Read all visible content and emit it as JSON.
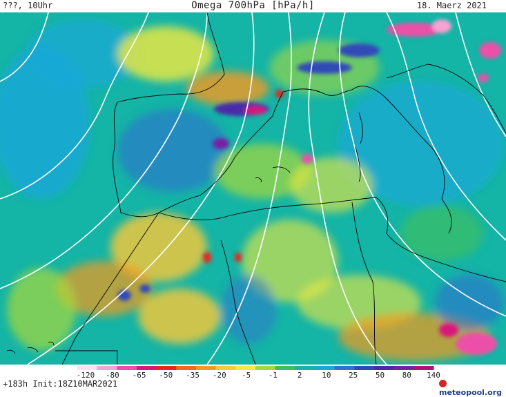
{
  "header": {
    "left": "???, 10Uhr",
    "title": "Omega 700hPa [hPa/h]",
    "date": "18. Maerz 2021"
  },
  "footer": {
    "run": "+183h  Init:18Z10MAR2021",
    "logo": "meteopool.org"
  },
  "legend": {
    "labels": [
      "-120",
      "-80",
      "-65",
      "-50",
      "-35",
      "-20",
      "-5",
      "-1",
      "2",
      "10",
      "25",
      "50",
      "80",
      "140"
    ],
    "colors": [
      "#fde0f2",
      "#f7a3d4",
      "#ec4fa8",
      "#d9197a",
      "#e8261c",
      "#f06a1a",
      "#f59a20",
      "#fbc83a",
      "#f3ea3d",
      "#a6d83b",
      "#3cbf63",
      "#14b4a6",
      "#19a8d8",
      "#2f72cf",
      "#3148b8",
      "#4a2aa8",
      "#7a1fa2",
      "#b0127a"
    ]
  },
  "colors": {
    "background_field": "#14b4a6",
    "isolines": "#ffffff",
    "coastlines": "#000000"
  }
}
